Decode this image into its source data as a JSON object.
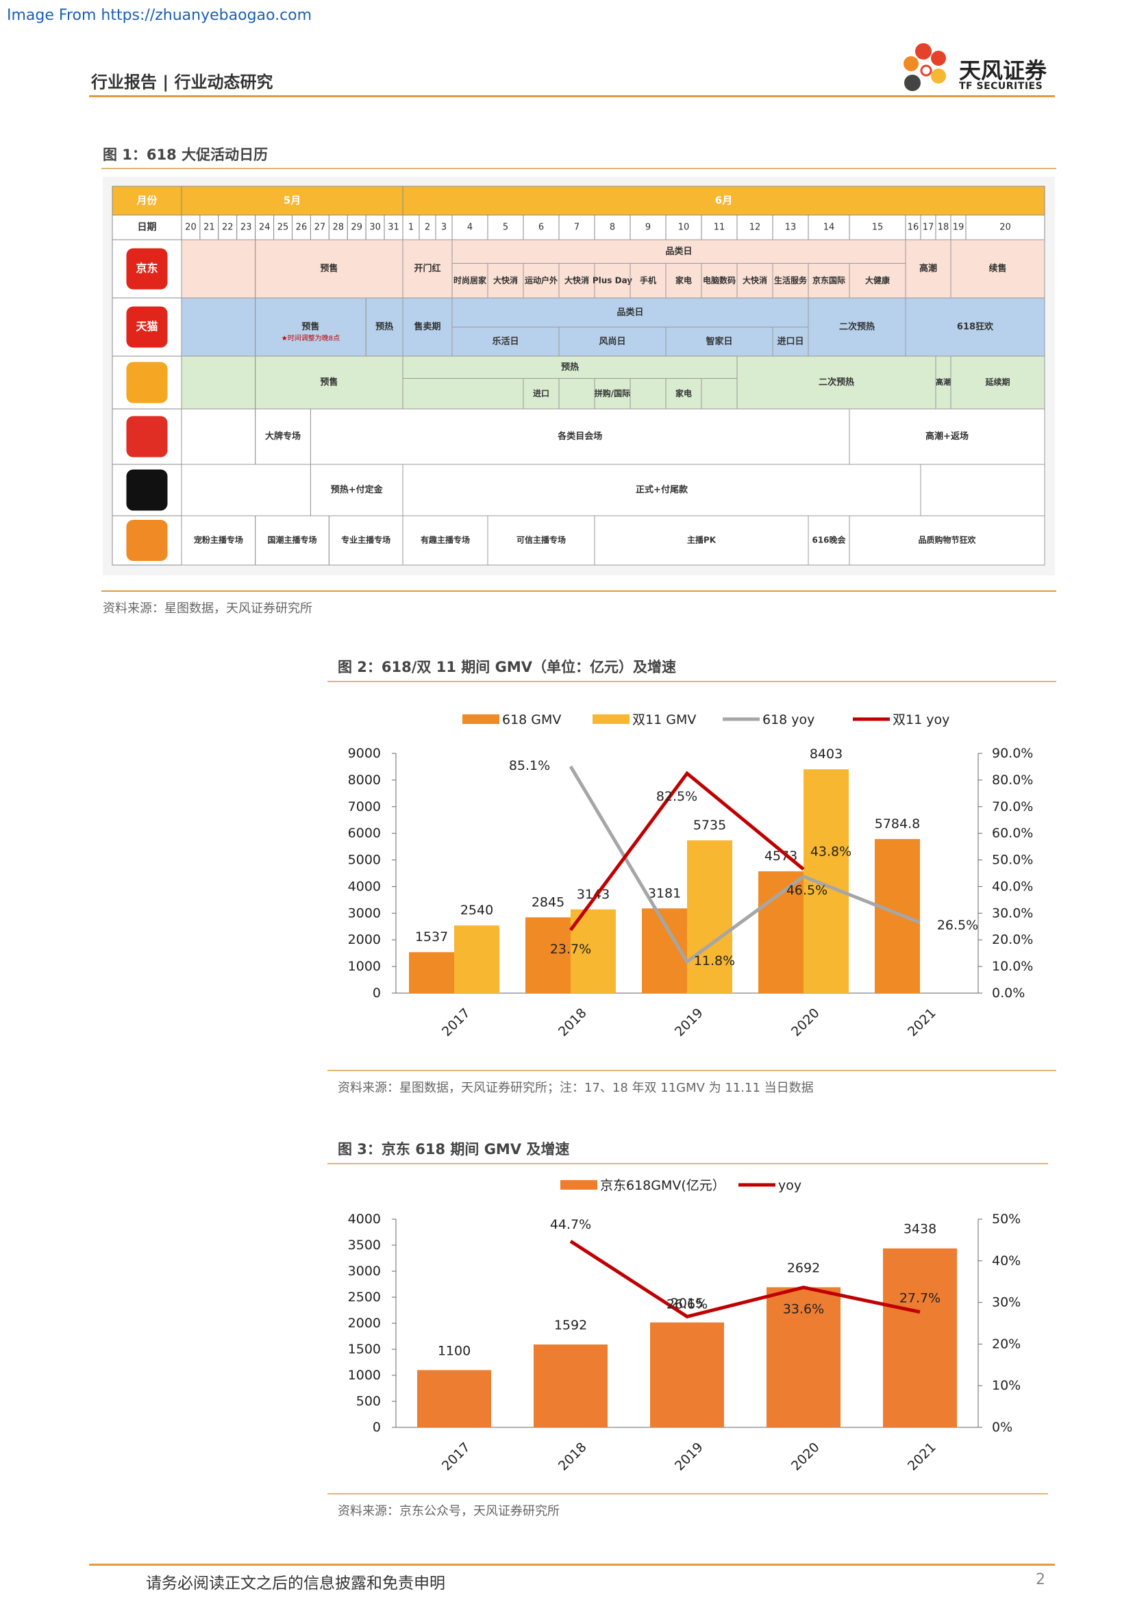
{
  "source_link": "Image From https://zhuanyebaogao.com",
  "header": {
    "title": "行业报告 | 行业动态研究",
    "brand_cn": "天风证券",
    "brand_en": "TF SECURITIES"
  },
  "fig1": {
    "title": "图 1：618 大促活动日历",
    "source": "资料来源：星图数据，天风证券研究所",
    "month_label": "月份",
    "may": "5月",
    "june": "6月",
    "date_label": "日期",
    "may_days": [
      "20",
      "21",
      "22",
      "23",
      "24",
      "25",
      "26",
      "27",
      "28",
      "29",
      "30",
      "31"
    ],
    "june_days": [
      "1",
      "2",
      "3",
      "4",
      "5",
      "6",
      "7",
      "8",
      "9",
      "10",
      "11",
      "12",
      "13",
      "14",
      "15",
      "16",
      "17",
      "18",
      "19",
      "20"
    ],
    "logos": [
      "京东",
      "天猫",
      "",
      "",
      "",
      "",
      ""
    ],
    "jd": {
      "presale": "预售",
      "open": "开门红",
      "cat_day": "品类日",
      "items": [
        "时尚居家",
        "大快消",
        "运动户外",
        "大快消",
        "Plus Day",
        "手机",
        "家电",
        "电脑数码",
        "大快消",
        "生活服务",
        "京东国际",
        "大健康"
      ],
      "climax": "高潮",
      "cont": "续售"
    },
    "tmall": {
      "presale": "预售",
      "presale_note": "时间调整为晚8点",
      "preheat": "预热",
      "sale": "售卖期",
      "cat_day": "品类日",
      "items": [
        "乐活日",
        "风尚日",
        "智家日",
        "进口日"
      ],
      "second": "二次预热",
      "carnival": "618狂欢"
    },
    "suning": {
      "presale": "预售",
      "preheat": "预热",
      "items": [
        "进口",
        "拼购/国际",
        "家电"
      ],
      "second": "二次预热",
      "climax": "高潮",
      "extend": "延续期"
    },
    "pdd": {
      "brand": "大牌专场",
      "cat": "各类目会场",
      "climax": "高潮+返场"
    },
    "douyin": {
      "preheat": "预热+付定金",
      "formal": "正式+付尾款"
    },
    "kuaishou": {
      "items": [
        "宠粉主播专场",
        "国潮主播专场",
        "专业主播专场",
        "有趣主播专场",
        "可信主播专场",
        "主播PK",
        "616晚会",
        "品质购物节狂欢"
      ]
    }
  },
  "fig2": {
    "title": "图 2：618/双 11 期间 GMV（单位：亿元）及增速",
    "source": "资料来源：星图数据，天风证券研究所；注：17、18 年双 11GMV 为 11.11 当日数据",
    "legend": [
      "618 GMV",
      "双11 GMV",
      "618 yoy",
      "双11 yoy"
    ]
  },
  "fig3": {
    "title": "图 3：京东 618 期间 GMV 及增速",
    "source": "资料来源：京东公众号，天风证券研究所",
    "legend": [
      "京东618GMV(亿元）",
      "yoy"
    ]
  },
  "chart_data": [
    {
      "type": "bar",
      "categories": [
        "2017",
        "2018",
        "2019",
        "2020",
        "2021"
      ],
      "series": [
        {
          "name": "618 GMV",
          "type": "bar",
          "values": [
            1537,
            2845,
            3181,
            4573,
            5784.8
          ],
          "labels": [
            "1537",
            "2845",
            "3181",
            "4573",
            "5784.8"
          ],
          "color": "#f08a24"
        },
        {
          "name": "双11 GMV",
          "type": "bar",
          "values": [
            2540,
            3143,
            5735,
            8403,
            null
          ],
          "labels": [
            "2540",
            "3143",
            "5735",
            "8403",
            ""
          ],
          "color": "#f7b731"
        },
        {
          "name": "618 yoy",
          "type": "line",
          "axis": "right",
          "values": [
            null,
            85.1,
            11.8,
            43.8,
            26.5
          ],
          "labels": [
            "",
            "85.1%",
            "11.8%",
            "43.8%",
            "26.5%"
          ],
          "color": "#a6a6a6"
        },
        {
          "name": "双11 yoy",
          "type": "line",
          "axis": "right",
          "values": [
            null,
            23.7,
            82.5,
            46.5,
            null
          ],
          "labels": [
            "",
            "23.7%",
            "82.5%",
            "46.5%",
            ""
          ],
          "color": "#c00000"
        }
      ],
      "yticks": [
        "0",
        "1000",
        "2000",
        "3000",
        "4000",
        "5000",
        "6000",
        "7000",
        "8000",
        "9000"
      ],
      "y2ticks": [
        "0.0%",
        "10.0%",
        "20.0%",
        "30.0%",
        "40.0%",
        "50.0%",
        "60.0%",
        "70.0%",
        "80.0%",
        "90.0%"
      ],
      "ylim": [
        0,
        9000
      ],
      "y2lim": [
        0,
        90
      ],
      "legend_position": "top"
    },
    {
      "type": "bar",
      "categories": [
        "2017",
        "2018",
        "2019",
        "2020",
        "2021"
      ],
      "series": [
        {
          "name": "京东618GMV(亿元）",
          "type": "bar",
          "values": [
            1100,
            1592,
            2015,
            2692,
            3438
          ],
          "labels": [
            "1100",
            "1592",
            "2015",
            "2692",
            "3438"
          ],
          "color": "#ed7d31"
        },
        {
          "name": "yoy",
          "type": "line",
          "axis": "right",
          "values": [
            null,
            44.7,
            26.6,
            33.6,
            27.7
          ],
          "labels": [
            "",
            "44.7%",
            "26.6%",
            "33.6%",
            "27.7%"
          ],
          "color": "#c00000"
        }
      ],
      "yticks": [
        "0",
        "500",
        "1000",
        "1500",
        "2000",
        "2500",
        "3000",
        "3500",
        "4000"
      ],
      "y2ticks": [
        "0%",
        "10%",
        "20%",
        "30%",
        "40%",
        "50%"
      ],
      "ylim": [
        0,
        4000
      ],
      "y2lim": [
        0,
        50
      ],
      "legend_position": "top"
    }
  ],
  "footer": {
    "disclaimer": "请务必阅读正文之后的信息披露和免责申明",
    "page": "2"
  }
}
